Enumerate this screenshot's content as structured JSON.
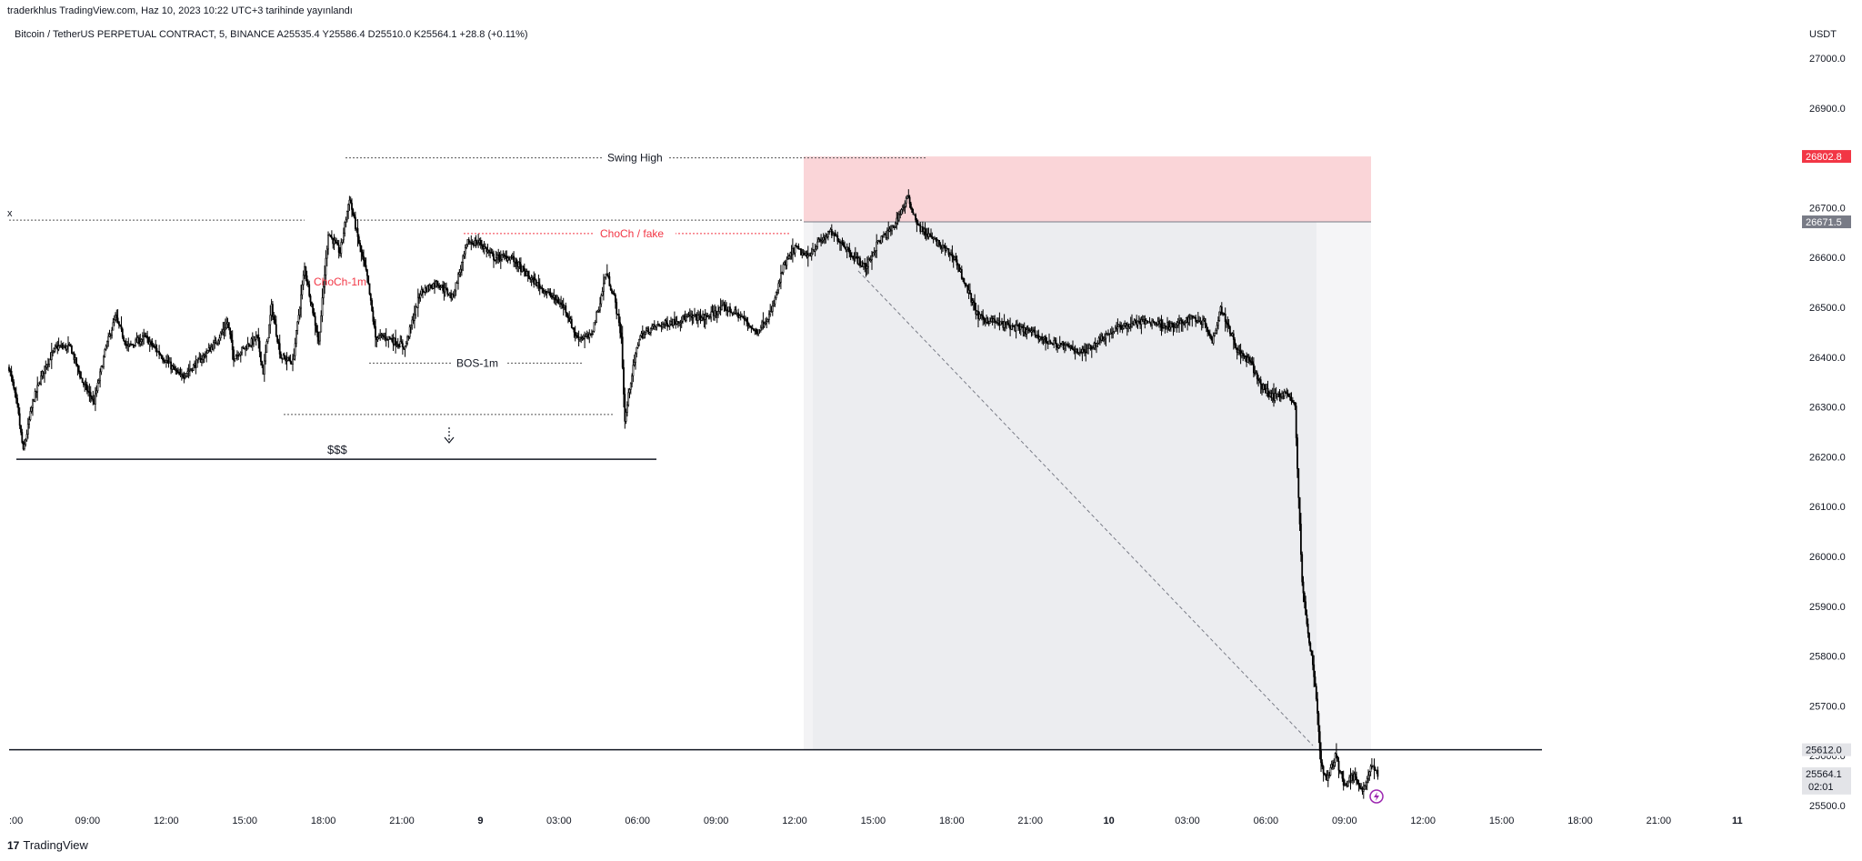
{
  "header": {
    "publish_text": "traderkhlus TradingView.com, Haz 10, 2023 10:22 UTC+3 tarihinde yayınlandı",
    "symbol_line": "Bitcoin / TetherUS PERPETUAL CONTRACT, 5, BINANCE  A25535.4  Y25586.4  D25510.0  K25564.1  +28.8 (+0.11%)"
  },
  "footer": {
    "logo_mark": "17",
    "logo_text": "TradingView"
  },
  "colors": {
    "candle": "#000000",
    "sell_zone": "#f8c7cb",
    "short_area": "#ecedf0",
    "short_area_light": "#f5f5f7",
    "label_red": "#f23645",
    "current_price_bg": "#e3e4e8",
    "axis_text": "#131722"
  },
  "chart_data": {
    "type": "candlestick",
    "currency_label": "USDT",
    "y_axis": {
      "ticks": [
        "27000.0",
        "26900.0",
        "26800.0",
        "26700.0",
        "26600.0",
        "26500.0",
        "26400.0",
        "26300.0",
        "26200.0",
        "26100.0",
        "26000.0",
        "25900.0",
        "25800.0",
        "25700.0",
        "25600.0",
        "25500.0"
      ],
      "range": [
        25495,
        27050
      ]
    },
    "x_axis": {
      "ticks": [
        ":00",
        "09:00",
        "12:00",
        "15:00",
        "18:00",
        "21:00",
        "9",
        "03:00",
        "06:00",
        "09:00",
        "12:00",
        "15:00",
        "18:00",
        "21:00",
        "10",
        "03:00",
        "06:00",
        "09:00",
        "12:00",
        "15:00",
        "18:00",
        "21:00",
        "11"
      ]
    },
    "price_labels": [
      {
        "value": "26802.8",
        "kind": "sell-zone-top"
      },
      {
        "value": "26671.5",
        "kind": "sell-zone-bottom"
      },
      {
        "value": "25612.0",
        "kind": "horizontal-line"
      },
      {
        "value": "25564.1",
        "kind": "current-price",
        "countdown": "02:01"
      }
    ],
    "annotations": [
      {
        "text": "Swing High",
        "kind": "level"
      },
      {
        "text": "ChoCh / fake",
        "kind": "level-red"
      },
      {
        "text": "ChoCh-1m",
        "kind": "label-red"
      },
      {
        "text": "BOS-1m",
        "kind": "level"
      },
      {
        "text": "$$$",
        "kind": "liquidity"
      },
      {
        "text": "x",
        "kind": "edge-label"
      }
    ],
    "key_levels": [
      {
        "name": "swing-high",
        "price": 26800
      },
      {
        "name": "choch-fake",
        "price": 26648
      },
      {
        "name": "choch-1m-level",
        "price": 26675
      },
      {
        "name": "bos-1m",
        "price": 26388
      },
      {
        "name": "sss-liquidity",
        "price": 26195
      },
      {
        "name": "low-dotted",
        "price": 26285
      },
      {
        "name": "support-line",
        "price": 25612
      },
      {
        "name": "sell-zone-top",
        "price": 26802.8
      },
      {
        "name": "sell-zone-bottom",
        "price": 26671.5
      }
    ],
    "series": [
      {
        "name": "BTCUSDT.P 5m",
        "anchors": [
          [
            0,
            26380
          ],
          [
            7,
            26300
          ],
          [
            12,
            26210
          ],
          [
            20,
            26310
          ],
          [
            30,
            26380
          ],
          [
            40,
            26420
          ],
          [
            52,
            26420
          ],
          [
            62,
            26350
          ],
          [
            72,
            26310
          ],
          [
            82,
            26420
          ],
          [
            90,
            26480
          ],
          [
            100,
            26420
          ],
          [
            115,
            26440
          ],
          [
            130,
            26400
          ],
          [
            145,
            26360
          ],
          [
            160,
            26390
          ],
          [
            175,
            26430
          ],
          [
            185,
            26470
          ],
          [
            190,
            26400
          ],
          [
            200,
            26420
          ],
          [
            210,
            26440
          ],
          [
            215,
            26370
          ],
          [
            222,
            26500
          ],
          [
            230,
            26400
          ],
          [
            240,
            26390
          ],
          [
            250,
            26580
          ],
          [
            262,
            26430
          ],
          [
            270,
            26650
          ],
          [
            280,
            26610
          ],
          [
            288,
            26720
          ],
          [
            295,
            26640
          ],
          [
            303,
            26560
          ],
          [
            310,
            26440
          ],
          [
            320,
            26440
          ],
          [
            335,
            26420
          ],
          [
            348,
            26530
          ],
          [
            362,
            26550
          ],
          [
            375,
            26520
          ],
          [
            388,
            26630
          ],
          [
            398,
            26630
          ],
          [
            410,
            26600
          ],
          [
            425,
            26600
          ],
          [
            440,
            26560
          ],
          [
            455,
            26530
          ],
          [
            470,
            26500
          ],
          [
            480,
            26440
          ],
          [
            492,
            26440
          ],
          [
            500,
            26510
          ],
          [
            505,
            26570
          ],
          [
            512,
            26520
          ],
          [
            518,
            26440
          ],
          [
            521,
            26270
          ],
          [
            525,
            26340
          ],
          [
            533,
            26440
          ],
          [
            545,
            26460
          ],
          [
            560,
            26470
          ],
          [
            575,
            26480
          ],
          [
            590,
            26480
          ],
          [
            605,
            26500
          ],
          [
            620,
            26480
          ],
          [
            632,
            26450
          ],
          [
            645,
            26490
          ],
          [
            655,
            26580
          ],
          [
            665,
            26620
          ],
          [
            675,
            26600
          ],
          [
            685,
            26630
          ],
          [
            695,
            26650
          ],
          [
            705,
            26630
          ],
          [
            715,
            26600
          ],
          [
            725,
            26580
          ],
          [
            735,
            26630
          ],
          [
            748,
            26660
          ],
          [
            760,
            26720
          ],
          [
            770,
            26660
          ],
          [
            780,
            26640
          ],
          [
            790,
            26620
          ],
          [
            800,
            26600
          ],
          [
            810,
            26540
          ],
          [
            820,
            26480
          ],
          [
            835,
            26470
          ],
          [
            850,
            26460
          ],
          [
            865,
            26450
          ],
          [
            880,
            26430
          ],
          [
            895,
            26420
          ],
          [
            910,
            26410
          ],
          [
            925,
            26440
          ],
          [
            940,
            26460
          ],
          [
            955,
            26470
          ],
          [
            970,
            26470
          ],
          [
            985,
            26460
          ],
          [
            1000,
            26480
          ],
          [
            1012,
            26470
          ],
          [
            1018,
            26430
          ],
          [
            1025,
            26500
          ],
          [
            1032,
            26460
          ],
          [
            1040,
            26410
          ],
          [
            1050,
            26390
          ],
          [
            1060,
            26340
          ],
          [
            1070,
            26320
          ],
          [
            1080,
            26330
          ],
          [
            1088,
            26300
          ],
          [
            1091,
            26120
          ],
          [
            1094,
            25950
          ],
          [
            1098,
            25860
          ],
          [
            1102,
            25800
          ],
          [
            1106,
            25720
          ],
          [
            1110,
            25580
          ],
          [
            1115,
            25550
          ],
          [
            1122,
            25600
          ],
          [
            1130,
            25540
          ],
          [
            1138,
            25560
          ],
          [
            1146,
            25530
          ],
          [
            1152,
            25580
          ],
          [
            1158,
            25564
          ]
        ]
      }
    ]
  }
}
